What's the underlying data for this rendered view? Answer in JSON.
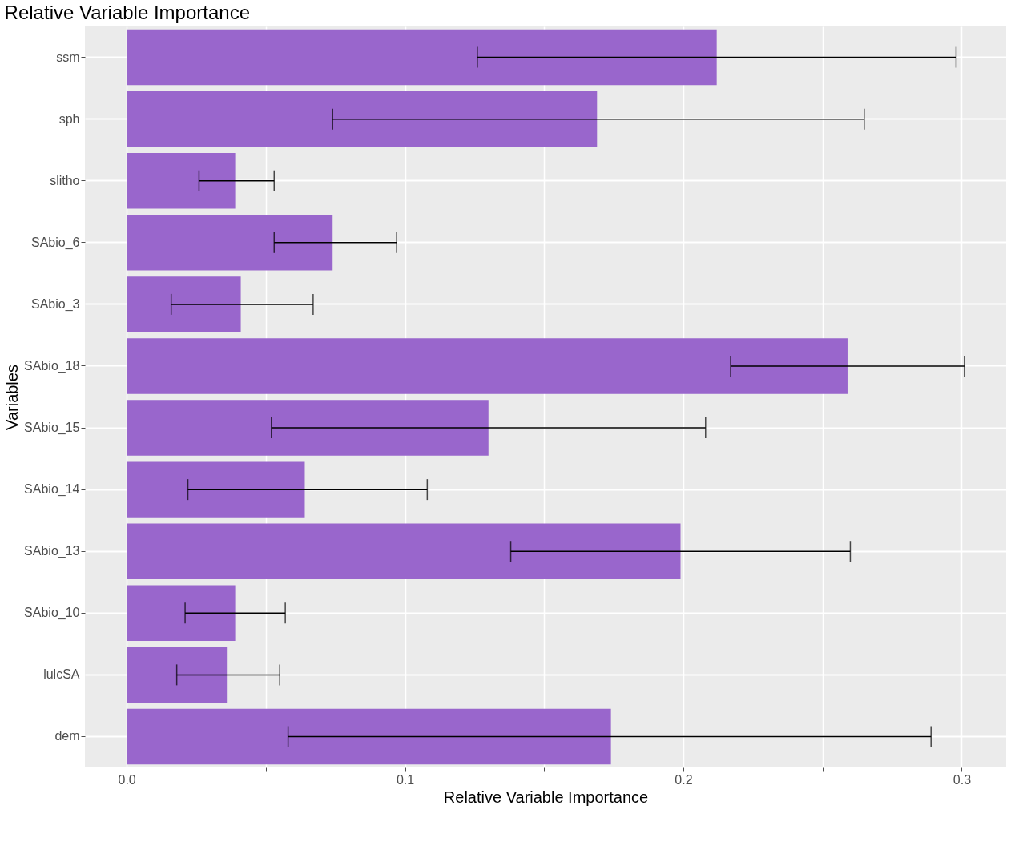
{
  "chart_data": {
    "type": "bar",
    "orientation": "horizontal",
    "title": "Relative Variable Importance",
    "xlabel": "Relative Variable Importance",
    "ylabel": "Variables",
    "categories": [
      "ssm",
      "sph",
      "slitho",
      "SAbio_6",
      "SAbio_3",
      "SAbio_18",
      "SAbio_15",
      "SAbio_14",
      "SAbio_13",
      "SAbio_10",
      "lulcSA",
      "dem"
    ],
    "values": [
      0.212,
      0.169,
      0.039,
      0.074,
      0.041,
      0.259,
      0.13,
      0.064,
      0.199,
      0.039,
      0.036,
      0.174
    ],
    "errors": [
      [
        0.126,
        0.298
      ],
      [
        0.074,
        0.265
      ],
      [
        0.026,
        0.053
      ],
      [
        0.053,
        0.097
      ],
      [
        0.016,
        0.067
      ],
      [
        0.217,
        0.301
      ],
      [
        0.052,
        0.208
      ],
      [
        0.022,
        0.108
      ],
      [
        0.138,
        0.26
      ],
      [
        0.021,
        0.057
      ],
      [
        0.018,
        0.055
      ],
      [
        0.058,
        0.289
      ]
    ],
    "color": "#9966cc",
    "xlim": [
      -0.015,
      0.316
    ],
    "xticks": [
      {
        "value": 0,
        "label": "0.0"
      },
      {
        "value": 0.05,
        "label": null
      },
      0.1,
      {
        "value": 0.15,
        "label": null
      },
      0.2,
      {
        "value": 0.25,
        "label": null
      },
      0.3
    ],
    "grid": true
  }
}
